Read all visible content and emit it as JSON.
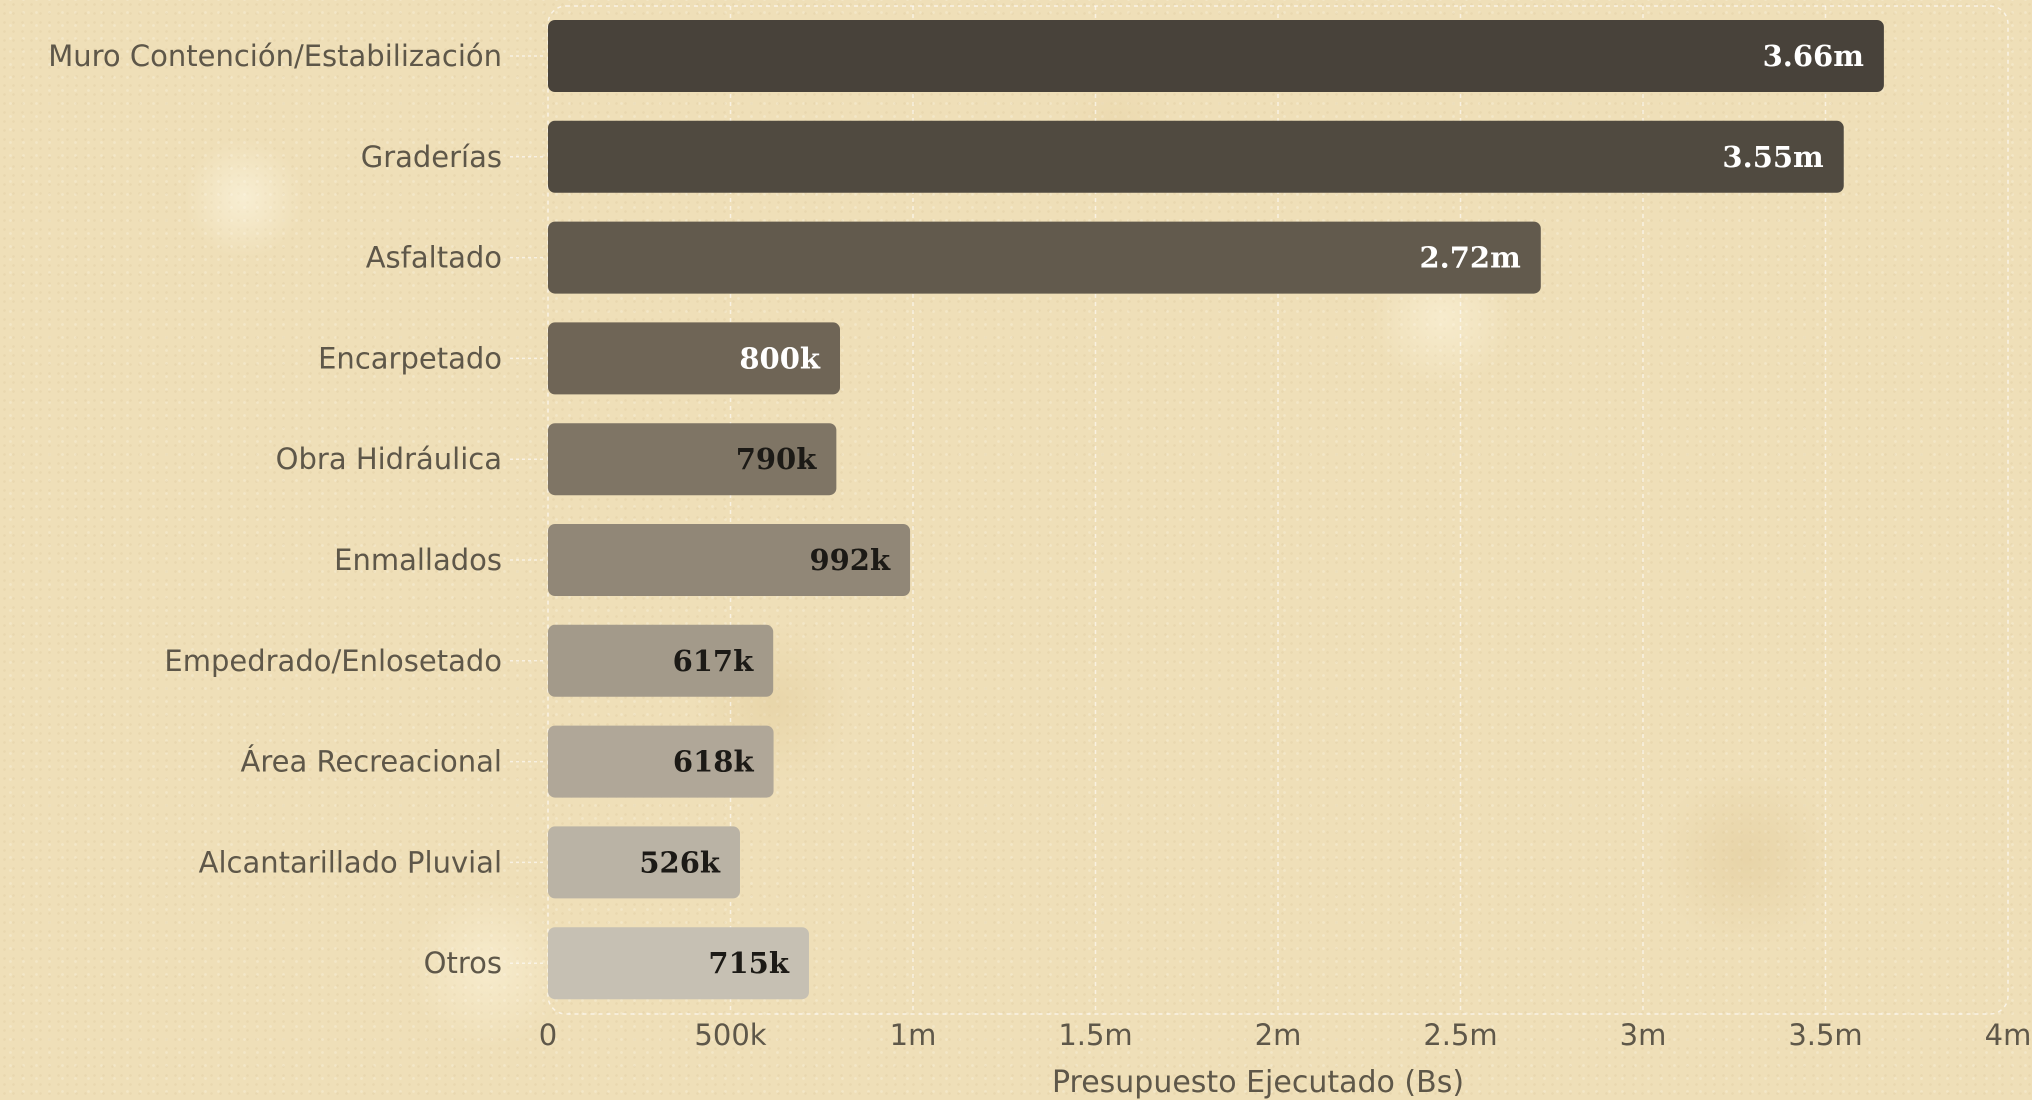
{
  "chart_data": {
    "type": "bar",
    "orientation": "horizontal",
    "categories": [
      "Muro Contención/Estabilización",
      "Graderías",
      "Asfaltado",
      "Encarpetado",
      "Obra Hidráulica",
      "Enmallados",
      "Empedrado/Enlosetado",
      "Área Recreacional",
      "Alcantarillado Pluvial",
      "Otros"
    ],
    "values": [
      3660000,
      3550000,
      2720000,
      800000,
      790000,
      992000,
      617000,
      618000,
      526000,
      715000
    ],
    "value_labels": [
      "3.66m",
      "3.55m",
      "2.72m",
      "800k",
      "790k",
      "992k",
      "617k",
      "618k",
      "526k",
      "715k"
    ],
    "bar_colors": [
      "#48423a",
      "#504a40",
      "#625a4d",
      "#6f6556",
      "#7f7565",
      "#918777",
      "#a39a8a",
      "#b0a798",
      "#bab3a5",
      "#c6c0b3"
    ],
    "value_label_colors": [
      "#ffffff",
      "#ffffff",
      "#ffffff",
      "#ffffff",
      "#1c1a16",
      "#1c1a16",
      "#1c1a16",
      "#1c1a16",
      "#1c1a16",
      "#1c1a16"
    ],
    "xlabel": "Presupuesto Ejecutado (Bs)",
    "ylabel": "",
    "xlim": [
      0,
      4000000
    ],
    "xticks": [
      0,
      500000,
      1000000,
      1500000,
      2000000,
      2500000,
      3000000,
      3500000,
      4000000
    ],
    "xtick_labels": [
      "0",
      "500k",
      "1m",
      "1.5m",
      "2m",
      "2.5m",
      "3m",
      "3.5m",
      "4m"
    ],
    "grid": "vertical, dashed",
    "legend": "none"
  }
}
